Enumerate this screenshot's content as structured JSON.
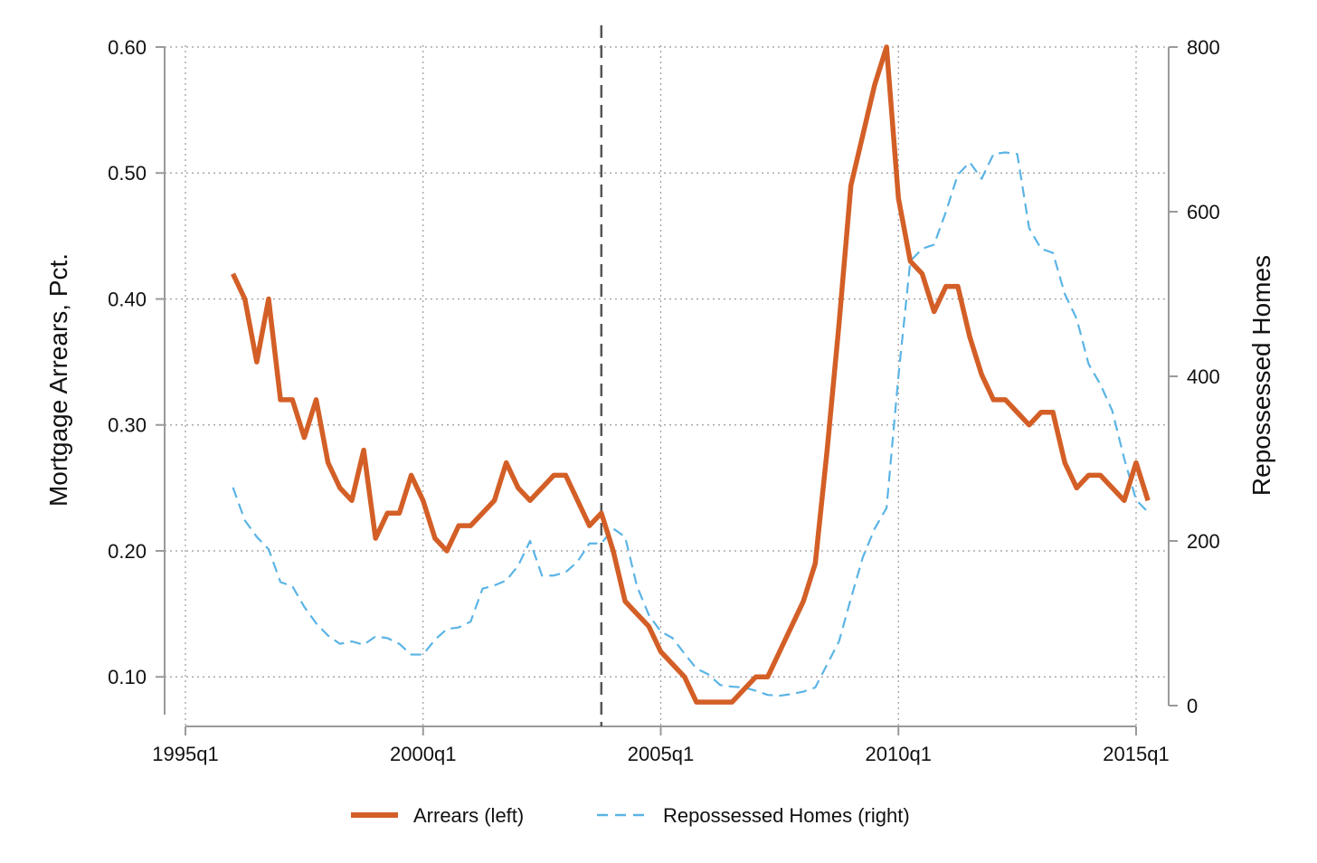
{
  "chart_data": {
    "type": "line",
    "title": "",
    "ylabel": "Mortgage Arrears, Pct.",
    "y2label": "Repossessed Homes",
    "xlabel": "",
    "x_ticks": [
      "1995q1",
      "2000q1",
      "2005q1",
      "2010q1",
      "2015q1"
    ],
    "x_tick_values": [
      1995.0,
      2000.0,
      2005.0,
      2010.0,
      2015.0
    ],
    "xlim": [
      1995.0,
      2015.0
    ],
    "y_ticks": [
      "0.10",
      "0.20",
      "0.30",
      "0.40",
      "0.50",
      "0.60"
    ],
    "y_tick_values": [
      0.1,
      0.2,
      0.3,
      0.4,
      0.5,
      0.6
    ],
    "ylim": [
      0.07,
      0.6
    ],
    "y2_ticks": [
      "0",
      "200",
      "400",
      "600",
      "800"
    ],
    "y2_tick_values": [
      0,
      200,
      400,
      600,
      800
    ],
    "y2lim": [
      0,
      800
    ],
    "vertical_line_x": 2003.75,
    "grid": true,
    "legend_position": "bottom",
    "series": [
      {
        "name": "Arrears (left)",
        "axis": "left",
        "color": "#d35f27",
        "style": "solid",
        "x": [
          1996.0,
          1996.25,
          1996.5,
          1996.75,
          1997.0,
          1997.25,
          1997.5,
          1997.75,
          1998.0,
          1998.25,
          1998.5,
          1998.75,
          1999.0,
          1999.25,
          1999.5,
          1999.75,
          2000.0,
          2000.25,
          2000.5,
          2000.75,
          2001.0,
          2001.25,
          2001.5,
          2001.75,
          2002.0,
          2002.25,
          2002.5,
          2002.75,
          2003.0,
          2003.25,
          2003.5,
          2003.75,
          2004.0,
          2004.25,
          2004.5,
          2004.75,
          2005.0,
          2005.25,
          2005.5,
          2005.75,
          2006.0,
          2006.25,
          2006.5,
          2006.75,
          2007.0,
          2007.25,
          2007.5,
          2007.75,
          2008.0,
          2008.25,
          2008.5,
          2008.75,
          2009.0,
          2009.25,
          2009.5,
          2009.75,
          2010.0,
          2010.25,
          2010.5,
          2010.75,
          2011.0,
          2011.25,
          2011.5,
          2011.75,
          2012.0,
          2012.25,
          2012.5,
          2012.75,
          2013.0,
          2013.25,
          2013.5,
          2013.75,
          2014.0,
          2014.25,
          2014.5,
          2014.75,
          2015.0,
          2015.25
        ],
        "values": [
          0.42,
          0.4,
          0.35,
          0.4,
          0.32,
          0.32,
          0.29,
          0.32,
          0.27,
          0.25,
          0.24,
          0.28,
          0.21,
          0.23,
          0.23,
          0.26,
          0.24,
          0.21,
          0.2,
          0.22,
          0.22,
          0.23,
          0.24,
          0.27,
          0.25,
          0.24,
          0.25,
          0.26,
          0.26,
          0.24,
          0.22,
          0.23,
          0.2,
          0.16,
          0.15,
          0.14,
          0.12,
          0.11,
          0.1,
          0.08,
          0.08,
          0.08,
          0.08,
          0.09,
          0.1,
          0.1,
          0.12,
          0.14,
          0.16,
          0.19,
          0.28,
          0.38,
          0.49,
          0.53,
          0.57,
          0.6,
          0.48,
          0.43,
          0.42,
          0.39,
          0.41,
          0.41,
          0.37,
          0.34,
          0.32,
          0.32,
          0.31,
          0.3,
          0.31,
          0.31,
          0.27,
          0.25,
          0.26,
          0.26,
          0.25,
          0.24,
          0.27,
          0.24
        ]
      },
      {
        "name": "Repossessed Homes (right)",
        "axis": "right",
        "color": "#5bb4e5",
        "style": "dashed",
        "x": [
          1996.0,
          1996.25,
          1996.5,
          1996.75,
          1997.0,
          1997.25,
          1997.5,
          1997.75,
          1998.0,
          1998.25,
          1998.5,
          1998.75,
          1999.0,
          1999.25,
          1999.5,
          1999.75,
          2000.0,
          2000.25,
          2000.5,
          2000.75,
          2001.0,
          2001.25,
          2001.5,
          2001.75,
          2002.0,
          2002.25,
          2002.5,
          2002.75,
          2003.0,
          2003.25,
          2003.5,
          2003.75,
          2004.0,
          2004.25,
          2004.5,
          2004.75,
          2005.0,
          2005.25,
          2005.5,
          2005.75,
          2006.0,
          2006.25,
          2006.5,
          2006.75,
          2007.0,
          2007.25,
          2007.5,
          2007.75,
          2008.0,
          2008.25,
          2008.5,
          2008.75,
          2009.0,
          2009.25,
          2009.5,
          2009.75,
          2010.0,
          2010.25,
          2010.5,
          2010.75,
          2011.0,
          2011.25,
          2011.5,
          2011.75,
          2012.0,
          2012.25,
          2012.5,
          2012.75,
          2013.0,
          2013.25,
          2013.5,
          2013.75,
          2014.0,
          2014.25,
          2014.5,
          2014.75,
          2015.0,
          2015.25
        ],
        "values": [
          265,
          225,
          205,
          190,
          150,
          145,
          120,
          100,
          85,
          75,
          78,
          74,
          84,
          82,
          75,
          62,
          62,
          80,
          93,
          95,
          102,
          142,
          146,
          152,
          170,
          200,
          158,
          158,
          162,
          175,
          197,
          197,
          215,
          205,
          145,
          110,
          90,
          82,
          63,
          45,
          38,
          25,
          23,
          22,
          18,
          13,
          12,
          14,
          17,
          22,
          50,
          78,
          130,
          180,
          215,
          240,
          400,
          540,
          555,
          560,
          600,
          645,
          660,
          640,
          670,
          672,
          670,
          580,
          555,
          550,
          500,
          470,
          415,
          390,
          358,
          300,
          250,
          235
        ]
      }
    ]
  }
}
